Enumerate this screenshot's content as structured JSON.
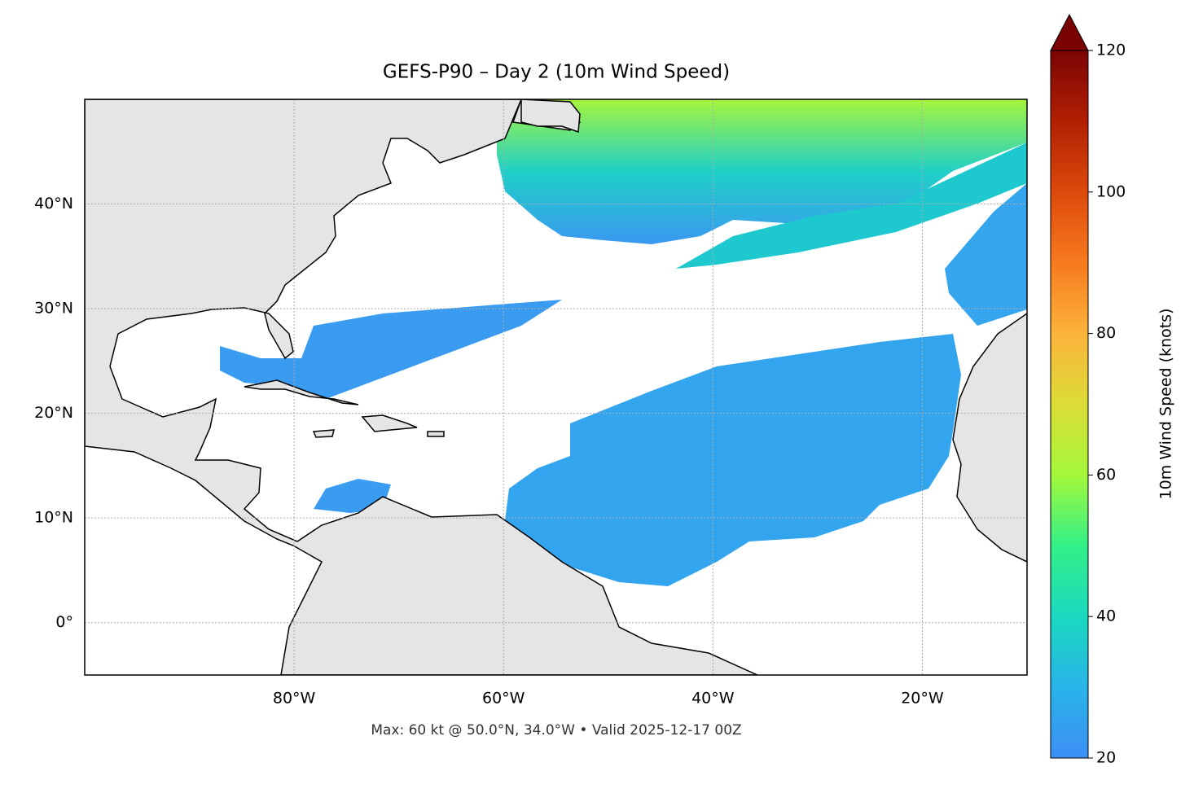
{
  "chart_data": {
    "type": "map",
    "title": "GEFS-P90 – Day 2 (10m Wind Speed)",
    "subtitle": "Max: 60 kt @ 50.0°N, 34.0°W • Valid 2025-12-17 00Z",
    "xlim": [
      -100,
      -10
    ],
    "ylim": [
      -5,
      50
    ],
    "xticks": [
      {
        "value": -80,
        "label": "80°W"
      },
      {
        "value": -60,
        "label": "60°W"
      },
      {
        "value": -40,
        "label": "40°W"
      },
      {
        "value": -20,
        "label": "20°W"
      }
    ],
    "yticks": [
      {
        "value": 0,
        "label": "0°"
      },
      {
        "value": 10,
        "label": "10°N"
      },
      {
        "value": 20,
        "label": "20°N"
      },
      {
        "value": 30,
        "label": "30°N"
      },
      {
        "value": 40,
        "label": "40°N"
      }
    ],
    "grid": true,
    "colorbar": {
      "label": "10m Wind Speed (knots)",
      "lim": [
        20,
        120
      ],
      "ticks": [
        20,
        40,
        60,
        80,
        100,
        120
      ],
      "extend": "max"
    }
  }
}
